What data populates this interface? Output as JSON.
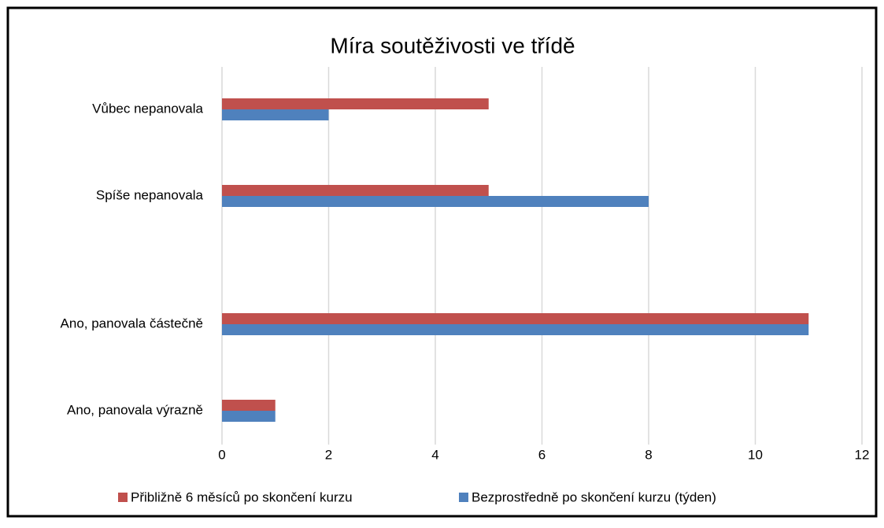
{
  "chart_data": {
    "type": "bar",
    "orientation": "horizontal",
    "title": "Míra soutěživosti ve třídě",
    "categories": [
      "Vůbec nepanovala",
      "Spíše nepanovala",
      "Ano, panovala částečně",
      "Ano, panovala výrazně"
    ],
    "series": [
      {
        "name": "Přibližně 6 měsíců po skončení kurzu",
        "color": "#c0504d",
        "values": [
          5,
          5,
          11,
          1
        ]
      },
      {
        "name": "Bezprostředně po skončení kurzu (týden)",
        "color": "#4f81bd",
        "values": [
          2,
          8,
          11,
          1
        ]
      }
    ],
    "xlim": [
      0,
      12
    ],
    "xticks": [
      0,
      2,
      4,
      6,
      8,
      10,
      12
    ],
    "grid": true,
    "legend": "bottom"
  }
}
